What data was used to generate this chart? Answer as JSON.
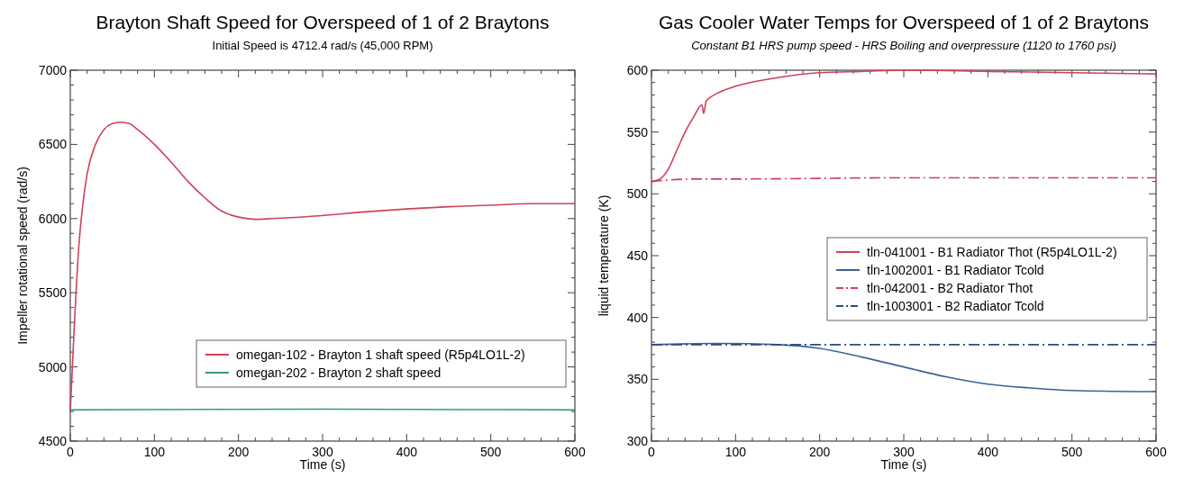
{
  "chart_data": [
    {
      "type": "line",
      "title": "Brayton Shaft Speed for Overspeed of 1 of 2 Braytons",
      "subtitle": "Initial Speed is 4712.4 rad/s (45,000 RPM)",
      "xlabel": "Time (s)",
      "ylabel": "Impeller rotational speed (rad/s)",
      "xlim": [
        0,
        600
      ],
      "ylim": [
        4500,
        7000
      ],
      "xticks": [
        0,
        {
          "value": 20,
          "label": null
        },
        {
          "value": 40,
          "label": null
        },
        {
          "value": 60,
          "label": null
        },
        {
          "value": 80,
          "label": null
        },
        100,
        {
          "value": 120,
          "label": null
        },
        {
          "value": 140,
          "label": null
        },
        {
          "value": 160,
          "label": null
        },
        {
          "value": 180,
          "label": null
        },
        200,
        {
          "value": 220,
          "label": null
        },
        {
          "value": 240,
          "label": null
        },
        {
          "value": 260,
          "label": null
        },
        {
          "value": 280,
          "label": null
        },
        300,
        {
          "value": 320,
          "label": null
        },
        {
          "value": 340,
          "label": null
        },
        {
          "value": 360,
          "label": null
        },
        {
          "value": 380,
          "label": null
        },
        400,
        {
          "value": 420,
          "label": null
        },
        {
          "value": 440,
          "label": null
        },
        {
          "value": 460,
          "label": null
        },
        {
          "value": 480,
          "label": null
        },
        500,
        {
          "value": 520,
          "label": null
        },
        {
          "value": 540,
          "label": null
        },
        {
          "value": 560,
          "label": null
        },
        {
          "value": 580,
          "label": null
        },
        600
      ],
      "yticks": [
        4500,
        {
          "value": 4600,
          "label": null
        },
        {
          "value": 4700,
          "label": null
        },
        {
          "value": 4800,
          "label": null
        },
        {
          "value": 4900,
          "label": null
        },
        5000,
        {
          "value": 5100,
          "label": null
        },
        {
          "value": 5200,
          "label": null
        },
        {
          "value": 5300,
          "label": null
        },
        {
          "value": 5400,
          "label": null
        },
        5500,
        {
          "value": 5600,
          "label": null
        },
        {
          "value": 5700,
          "label": null
        },
        {
          "value": 5800,
          "label": null
        },
        {
          "value": 5900,
          "label": null
        },
        6000,
        {
          "value": 6100,
          "label": null
        },
        {
          "value": 6200,
          "label": null
        },
        {
          "value": 6300,
          "label": null
        },
        {
          "value": 6400,
          "label": null
        },
        6500,
        {
          "value": 6600,
          "label": null
        },
        {
          "value": 6700,
          "label": null
        },
        {
          "value": 6800,
          "label": null
        },
        {
          "value": 6900,
          "label": null
        },
        7000
      ],
      "grid": false,
      "legend": "bottom right",
      "marker": "none",
      "series": [
        {
          "name": "omegan-102 - Brayton 1 shaft speed (R5p4LO1L-2)",
          "color": "#d0405a",
          "x": [
            0,
            5,
            10,
            15,
            20,
            30,
            40,
            50,
            60,
            70,
            80,
            100,
            120,
            140,
            160,
            180,
            200,
            220,
            240,
            300,
            350,
            400,
            450,
            500,
            550,
            600
          ],
          "values": [
            4700,
            5300,
            5800,
            6100,
            6300,
            6500,
            6600,
            6640,
            6650,
            6640,
            6600,
            6500,
            6380,
            6250,
            6140,
            6050,
            6010,
            5995,
            6000,
            6020,
            6045,
            6065,
            6080,
            6090,
            6100,
            6100
          ]
        },
        {
          "name": "omegan-202 - Brayton 2 shaft speed",
          "color": "#3a9a78",
          "x": [
            0,
            300,
            600
          ],
          "values": [
            4710,
            4715,
            4710
          ]
        }
      ]
    },
    {
      "type": "line",
      "title": "Gas Cooler Water Temps for Overspeed of 1 of 2 Braytons",
      "subtitle": "Constant B1 HRS pump speed - HRS Boiling and overpressure (1120 to 1760 psi)",
      "xlabel": "Time (s)",
      "ylabel": "liquid temperature (K)",
      "xlim": [
        0,
        600
      ],
      "ylim": [
        300,
        600
      ],
      "xticks": [
        0,
        {
          "value": 20,
          "label": null
        },
        {
          "value": 40,
          "label": null
        },
        {
          "value": 60,
          "label": null
        },
        {
          "value": 80,
          "label": null
        },
        100,
        {
          "value": 120,
          "label": null
        },
        {
          "value": 140,
          "label": null
        },
        {
          "value": 160,
          "label": null
        },
        {
          "value": 180,
          "label": null
        },
        200,
        {
          "value": 220,
          "label": null
        },
        {
          "value": 240,
          "label": null
        },
        {
          "value": 260,
          "label": null
        },
        {
          "value": 280,
          "label": null
        },
        300,
        {
          "value": 320,
          "label": null
        },
        {
          "value": 340,
          "label": null
        },
        {
          "value": 360,
          "label": null
        },
        {
          "value": 380,
          "label": null
        },
        400,
        {
          "value": 420,
          "label": null
        },
        {
          "value": 440,
          "label": null
        },
        {
          "value": 460,
          "label": null
        },
        {
          "value": 480,
          "label": null
        },
        500,
        {
          "value": 520,
          "label": null
        },
        {
          "value": 540,
          "label": null
        },
        {
          "value": 560,
          "label": null
        },
        {
          "value": 580,
          "label": null
        },
        600
      ],
      "yticks": [
        300,
        {
          "value": 310,
          "label": null
        },
        {
          "value": 320,
          "label": null
        },
        {
          "value": 330,
          "label": null
        },
        {
          "value": 340,
          "label": null
        },
        350,
        {
          "value": 360,
          "label": null
        },
        {
          "value": 370,
          "label": null
        },
        {
          "value": 380,
          "label": null
        },
        {
          "value": 390,
          "label": null
        },
        400,
        {
          "value": 410,
          "label": null
        },
        {
          "value": 420,
          "label": null
        },
        {
          "value": 430,
          "label": null
        },
        {
          "value": 440,
          "label": null
        },
        450,
        {
          "value": 460,
          "label": null
        },
        {
          "value": 470,
          "label": null
        },
        {
          "value": 480,
          "label": null
        },
        {
          "value": 490,
          "label": null
        },
        500,
        {
          "value": 510,
          "label": null
        },
        {
          "value": 520,
          "label": null
        },
        {
          "value": 530,
          "label": null
        },
        {
          "value": 540,
          "label": null
        },
        550,
        {
          "value": 560,
          "label": null
        },
        {
          "value": 570,
          "label": null
        },
        {
          "value": 580,
          "label": null
        },
        {
          "value": 590,
          "label": null
        },
        600
      ],
      "grid": false,
      "legend": "right",
      "marker": "none",
      "series": [
        {
          "name": "tln-041001 - B1 Radiator Thot (R5p4LO1L-2)",
          "color": "#d0405a",
          "line_style": "solid",
          "x": [
            0,
            10,
            20,
            30,
            40,
            50,
            60,
            62,
            65,
            70,
            80,
            100,
            150,
            200,
            250,
            300,
            400,
            500,
            600
          ],
          "values": [
            510,
            512,
            520,
            535,
            550,
            562,
            572,
            565,
            575,
            578,
            582,
            587,
            594,
            598,
            599,
            600,
            599,
            598,
            597
          ]
        },
        {
          "name": "tln-1002001 - B1 Radiator Tcold",
          "color": "#3a6494",
          "line_style": "solid",
          "x": [
            0,
            80,
            150,
            200,
            250,
            300,
            350,
            400,
            450,
            500,
            600
          ],
          "values": [
            378,
            379,
            378,
            375,
            368,
            360,
            352,
            346,
            343,
            341,
            340
          ]
        },
        {
          "name": "tln-042001 - B2 Radiator Thot",
          "color": "#d0405a",
          "line_style": "dashed",
          "x": [
            0,
            50,
            100,
            300,
            600
          ],
          "values": [
            510,
            512,
            512,
            513,
            513
          ]
        },
        {
          "name": "tln-1003001 - B2 Radiator Tcold",
          "color": "#2c4a80",
          "line_style": "dashed",
          "x": [
            0,
            300,
            600
          ],
          "values": [
            378,
            378,
            378
          ]
        }
      ]
    }
  ]
}
